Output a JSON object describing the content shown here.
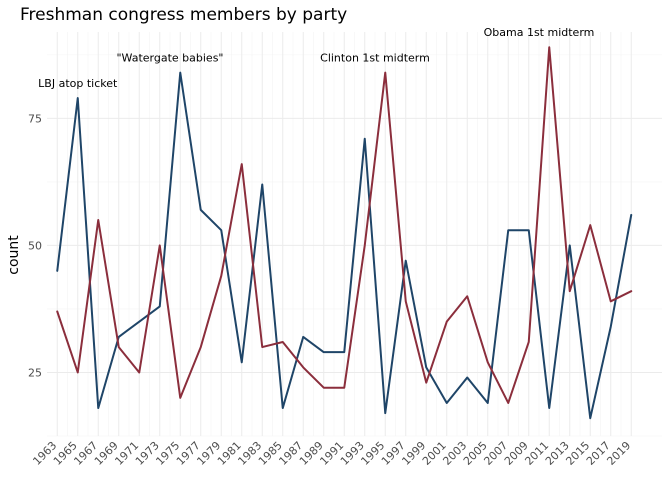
{
  "chart_data": {
    "type": "line",
    "title": "Freshman congress members by party",
    "xlabel": "",
    "ylabel": "count",
    "x": [
      1963,
      1965,
      1967,
      1969,
      1971,
      1973,
      1975,
      1977,
      1979,
      1981,
      1983,
      1985,
      1987,
      1989,
      1991,
      1993,
      1995,
      1997,
      1999,
      2001,
      2003,
      2005,
      2007,
      2009,
      2011,
      2013,
      2015,
      2017,
      2019
    ],
    "x_tick_labels": [
      "1963",
      "1965",
      "1967",
      "1969",
      "1971",
      "1973",
      "1975",
      "1977",
      "1979",
      "1981",
      "1983",
      "1985",
      "1987",
      "1989",
      "1991",
      "1993",
      "1995",
      "1997",
      "1999",
      "2001",
      "2003",
      "2005",
      "2007",
      "2009",
      "2011",
      "2013",
      "2015",
      "2017",
      "2019"
    ],
    "y_ticks": [
      25,
      50,
      75
    ],
    "y_tick_labels": [
      "25",
      "50",
      "75"
    ],
    "xlim": [
      1962,
      2022
    ],
    "ylim": [
      12.5,
      92
    ],
    "grid": true,
    "legend": "none",
    "series": [
      {
        "color": "#1f4568",
        "values": [
          45,
          79,
          18,
          32,
          35,
          38,
          84,
          57,
          53,
          27,
          62,
          18,
          32,
          29,
          29,
          71,
          17,
          47,
          26,
          19,
          24,
          19,
          53,
          53,
          18,
          50,
          16,
          34,
          56
        ]
      },
      {
        "color": "#8b2e3c",
        "values": [
          37,
          25,
          55,
          30,
          25,
          50,
          20,
          30,
          44,
          66,
          30,
          31,
          26,
          22,
          22,
          50,
          84,
          39,
          23,
          35,
          40,
          27,
          19,
          31,
          89,
          41,
          54,
          39,
          41
        ]
      }
    ],
    "annotations": [
      {
        "text": "LBJ atop ticket",
        "x": 1965,
        "y": 82
      },
      {
        "text": "\"Watergate babies\"",
        "x": 1974,
        "y": 87
      },
      {
        "text": "Clinton 1st midterm",
        "x": 1994,
        "y": 87
      },
      {
        "text": "Obama 1st midterm",
        "x": 2010,
        "y": 92
      }
    ]
  }
}
